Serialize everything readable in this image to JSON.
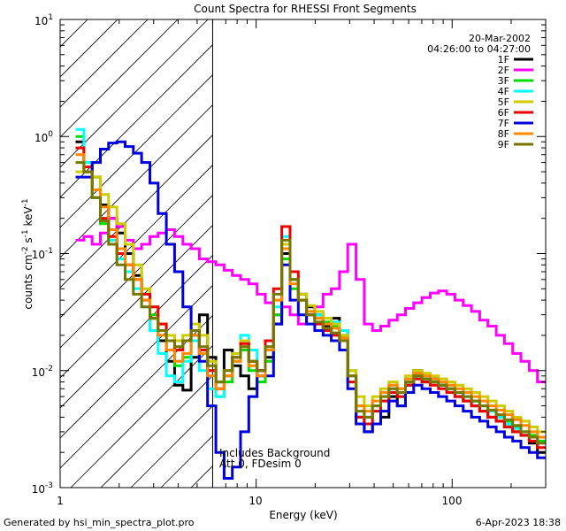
{
  "chart_data": {
    "type": "line",
    "title": "Count Spectra for RHESSI Front Segments",
    "xlabel": "Energy (keV)",
    "ylabel_parts": {
      "base": "counts cm",
      "exp1": "-2",
      "s": " s",
      "exp2": "-1",
      "unit": " keV",
      "exp3": "-1"
    },
    "xscale": "log",
    "yscale": "log",
    "xlim": [
      1,
      300
    ],
    "ylim": [
      0.001,
      10
    ],
    "x_tick_labels": [
      {
        "value": 1,
        "label": "1"
      },
      {
        "value": 10,
        "label": "10"
      },
      {
        "value": 100,
        "label": "100"
      }
    ],
    "y_tick_labels": [
      {
        "value": 0.001,
        "base": "10",
        "exp": "-3"
      },
      {
        "value": 0.01,
        "base": "10",
        "exp": "-2"
      },
      {
        "value": 0.1,
        "base": "10",
        "exp": "-1"
      },
      {
        "value": 1,
        "base": "10",
        "exp": "0"
      },
      {
        "value": 10,
        "base": "10",
        "exp": "1"
      }
    ],
    "date": "20-Mar-2002",
    "time_range": "04:26:00 to 04:27:00",
    "hatched_region_keV": [
      1,
      6
    ],
    "annotation_line1": "Includes Background",
    "annotation_line2": "Att 0, FDesim 0",
    "series": [
      {
        "name": "1F",
        "color": "#000000",
        "values": [
          0.9,
          0.5,
          0.45,
          0.26,
          0.2,
          0.15,
          0.1,
          0.065,
          0.04,
          0.028,
          0.018,
          0.012,
          0.0075,
          0.0068,
          0.013,
          0.03,
          0.013,
          0.008,
          0.015,
          0.011,
          0.009,
          0.007,
          0.009,
          0.013,
          0.025,
          0.1,
          0.06,
          0.045,
          0.035,
          0.03,
          0.024,
          0.028,
          0.022,
          0.009,
          0.004,
          0.003,
          0.0035,
          0.004,
          0.006,
          0.005,
          0.0075,
          0.01,
          0.008,
          0.0085,
          0.0075,
          0.007,
          0.006,
          0.0055,
          0.005,
          0.0045,
          0.004,
          0.0037,
          0.0033,
          0.003,
          0.0028,
          0.0024,
          0.002
        ]
      },
      {
        "name": "2F",
        "color": "#ff00ff",
        "values": [
          0.13,
          0.14,
          0.12,
          0.15,
          0.2,
          0.17,
          0.13,
          0.11,
          0.12,
          0.14,
          0.15,
          0.16,
          0.14,
          0.12,
          0.11,
          0.09,
          0.085,
          0.08,
          0.072,
          0.065,
          0.06,
          0.055,
          0.045,
          0.038,
          0.03,
          0.035,
          0.03,
          0.025,
          0.03,
          0.035,
          0.045,
          0.05,
          0.07,
          0.12,
          0.06,
          0.025,
          0.022,
          0.024,
          0.027,
          0.03,
          0.034,
          0.038,
          0.042,
          0.046,
          0.048,
          0.045,
          0.04,
          0.036,
          0.032,
          0.027,
          0.024,
          0.02,
          0.017,
          0.014,
          0.012,
          0.01,
          0.008
        ]
      },
      {
        "name": "3F",
        "color": "#00dd00",
        "values": [
          1.0,
          0.6,
          0.3,
          0.18,
          0.13,
          0.1,
          0.08,
          0.06,
          0.045,
          0.03,
          0.022,
          0.015,
          0.011,
          0.013,
          0.02,
          0.015,
          0.01,
          0.006,
          0.008,
          0.012,
          0.015,
          0.01,
          0.008,
          0.012,
          0.03,
          0.09,
          0.05,
          0.04,
          0.03,
          0.028,
          0.026,
          0.024,
          0.02,
          0.01,
          0.005,
          0.004,
          0.005,
          0.006,
          0.007,
          0.006,
          0.008,
          0.009,
          0.0085,
          0.008,
          0.0075,
          0.007,
          0.0065,
          0.006,
          0.0055,
          0.005,
          0.0045,
          0.004,
          0.0037,
          0.0033,
          0.003,
          0.0028,
          0.0025
        ]
      },
      {
        "name": "4F",
        "color": "#00ffff",
        "values": [
          1.15,
          0.6,
          0.3,
          0.2,
          0.13,
          0.09,
          0.07,
          0.05,
          0.035,
          0.022,
          0.014,
          0.009,
          0.008,
          0.012,
          0.018,
          0.01,
          0.007,
          0.006,
          0.009,
          0.014,
          0.02,
          0.015,
          0.01,
          0.015,
          0.035,
          0.14,
          0.06,
          0.04,
          0.032,
          0.03,
          0.028,
          0.026,
          0.022,
          0.009,
          0.004,
          0.0035,
          0.0045,
          0.0055,
          0.007,
          0.0065,
          0.0075,
          0.009,
          0.0085,
          0.008,
          0.0075,
          0.007,
          0.0065,
          0.006,
          0.0055,
          0.005,
          0.0045,
          0.004,
          0.0035,
          0.0032,
          0.003,
          0.0027,
          0.0024
        ]
      },
      {
        "name": "5F",
        "color": "#cccc00",
        "values": [
          0.5,
          0.55,
          0.45,
          0.32,
          0.25,
          0.18,
          0.12,
          0.08,
          0.05,
          0.035,
          0.025,
          0.02,
          0.018,
          0.02,
          0.025,
          0.02,
          0.012,
          0.008,
          0.01,
          0.014,
          0.018,
          0.012,
          0.01,
          0.016,
          0.04,
          0.12,
          0.06,
          0.045,
          0.036,
          0.032,
          0.028,
          0.025,
          0.02,
          0.01,
          0.006,
          0.005,
          0.006,
          0.007,
          0.008,
          0.007,
          0.009,
          0.01,
          0.0095,
          0.009,
          0.0085,
          0.008,
          0.0075,
          0.007,
          0.0065,
          0.006,
          0.0055,
          0.005,
          0.0045,
          0.004,
          0.0037,
          0.0033,
          0.003
        ]
      },
      {
        "name": "6F",
        "color": "#ee0000",
        "values": [
          0.8,
          0.55,
          0.35,
          0.2,
          0.14,
          0.1,
          0.08,
          0.06,
          0.045,
          0.035,
          0.025,
          0.018,
          0.015,
          0.018,
          0.022,
          0.015,
          0.01,
          0.007,
          0.009,
          0.013,
          0.017,
          0.012,
          0.01,
          0.018,
          0.05,
          0.17,
          0.07,
          0.04,
          0.03,
          0.025,
          0.022,
          0.02,
          0.018,
          0.008,
          0.004,
          0.0035,
          0.0045,
          0.0055,
          0.0065,
          0.006,
          0.0075,
          0.0085,
          0.008,
          0.0075,
          0.007,
          0.0065,
          0.006,
          0.0055,
          0.005,
          0.0045,
          0.004,
          0.0037,
          0.0033,
          0.003,
          0.0028,
          0.0025,
          0.0022
        ]
      },
      {
        "name": "7F",
        "color": "#0000dd",
        "values": [
          0.45,
          0.45,
          0.6,
          0.78,
          0.88,
          0.9,
          0.82,
          0.72,
          0.6,
          0.4,
          0.22,
          0.12,
          0.07,
          0.035,
          0.02,
          0.012,
          0.005,
          0.002,
          0.0012,
          0.0015,
          0.003,
          0.006,
          0.01,
          0.009,
          0.025,
          0.08,
          0.04,
          0.03,
          0.025,
          0.022,
          0.02,
          0.018,
          0.015,
          0.007,
          0.0035,
          0.003,
          0.0035,
          0.0045,
          0.0055,
          0.005,
          0.0065,
          0.0075,
          0.007,
          0.0065,
          0.006,
          0.0055,
          0.005,
          0.0045,
          0.004,
          0.0037,
          0.0033,
          0.003,
          0.0027,
          0.0025,
          0.0022,
          0.002,
          0.0018
        ]
      },
      {
        "name": "8F",
        "color": "#ff8800",
        "values": [
          0.7,
          0.5,
          0.35,
          0.25,
          0.16,
          0.11,
          0.08,
          0.06,
          0.04,
          0.028,
          0.02,
          0.015,
          0.012,
          0.014,
          0.02,
          0.014,
          0.009,
          0.007,
          0.009,
          0.012,
          0.016,
          0.011,
          0.009,
          0.015,
          0.04,
          0.11,
          0.055,
          0.04,
          0.032,
          0.028,
          0.025,
          0.023,
          0.019,
          0.009,
          0.005,
          0.0045,
          0.0055,
          0.0065,
          0.0075,
          0.007,
          0.0085,
          0.0095,
          0.009,
          0.0085,
          0.008,
          0.0075,
          0.007,
          0.0065,
          0.006,
          0.0055,
          0.005,
          0.0046,
          0.0042,
          0.0038,
          0.0034,
          0.003,
          0.0027
        ]
      },
      {
        "name": "9F",
        "color": "#777700",
        "values": [
          0.6,
          0.5,
          0.3,
          0.19,
          0.12,
          0.08,
          0.06,
          0.045,
          0.035,
          0.028,
          0.022,
          0.018,
          0.016,
          0.018,
          0.022,
          0.016,
          0.011,
          0.008,
          0.01,
          0.013,
          0.016,
          0.012,
          0.01,
          0.016,
          0.045,
          0.13,
          0.06,
          0.04,
          0.03,
          0.026,
          0.023,
          0.021,
          0.018,
          0.009,
          0.0045,
          0.004,
          0.005,
          0.006,
          0.007,
          0.0065,
          0.008,
          0.009,
          0.0085,
          0.008,
          0.0075,
          0.007,
          0.0065,
          0.006,
          0.0055,
          0.005,
          0.0046,
          0.0042,
          0.0038,
          0.0034,
          0.003,
          0.0027,
          0.0024
        ]
      }
    ],
    "energy_start_keV": 1.2,
    "energy_end_keV": 300
  },
  "footer": {
    "left": "Generated by hsi_min_spectra_plot.pro",
    "right": "6-Apr-2023 18:38"
  }
}
